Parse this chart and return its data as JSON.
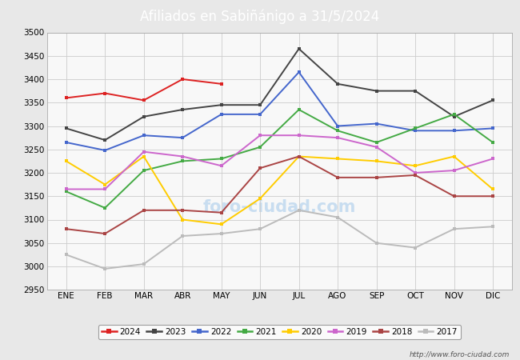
{
  "title": "Afiliados en Sabiñánigo a 31/5/2024",
  "title_bg_color": "#5599cc",
  "title_text_color": "white",
  "ylim": [
    2950,
    3500
  ],
  "yticks": [
    2950,
    3000,
    3050,
    3100,
    3150,
    3200,
    3250,
    3300,
    3350,
    3400,
    3450,
    3500
  ],
  "months": [
    "ENE",
    "FEB",
    "MAR",
    "ABR",
    "MAY",
    "JUN",
    "JUL",
    "AGO",
    "SEP",
    "OCT",
    "NOV",
    "DIC"
  ],
  "series": [
    {
      "year": "2024",
      "color": "#dd2222",
      "values": [
        3360,
        3370,
        3355,
        3400,
        3390,
        null,
        null,
        null,
        null,
        null,
        null,
        null
      ]
    },
    {
      "year": "2023",
      "color": "#444444",
      "values": [
        3295,
        3270,
        3320,
        3335,
        3345,
        3345,
        3465,
        3390,
        3375,
        3375,
        3320,
        3355
      ]
    },
    {
      "year": "2022",
      "color": "#4466cc",
      "values": [
        3265,
        3248,
        3280,
        3275,
        3325,
        3325,
        3415,
        3300,
        3305,
        3290,
        3290,
        3295
      ]
    },
    {
      "year": "2021",
      "color": "#44aa44",
      "values": [
        3160,
        3125,
        3205,
        3225,
        3230,
        3255,
        3335,
        3290,
        3265,
        3295,
        3325,
        3265
      ]
    },
    {
      "year": "2020",
      "color": "#ffcc00",
      "values": [
        3225,
        3175,
        3235,
        3100,
        3090,
        3145,
        3235,
        3230,
        3225,
        3215,
        3235,
        3165
      ]
    },
    {
      "year": "2019",
      "color": "#cc66cc",
      "values": [
        3165,
        3165,
        3245,
        3235,
        3215,
        3280,
        3280,
        3275,
        3255,
        3200,
        3205,
        3230
      ]
    },
    {
      "year": "2018",
      "color": "#aa4444",
      "values": [
        3080,
        3070,
        3120,
        3120,
        3115,
        3210,
        3235,
        3190,
        3190,
        3195,
        3150,
        3150
      ]
    },
    {
      "year": "2017",
      "color": "#bbbbbb",
      "values": [
        3025,
        2995,
        3005,
        3065,
        3070,
        3080,
        3120,
        3105,
        3050,
        3040,
        3080,
        3085
      ]
    }
  ],
  "footer_url": "http://www.foro-ciudad.com",
  "outer_bg": "#e8e8e8",
  "plot_bg_color": "#f8f8f8",
  "grid_color": "#cccccc",
  "watermark_color": "#c8ddf0",
  "watermark_text": "foro-ciudad.com"
}
